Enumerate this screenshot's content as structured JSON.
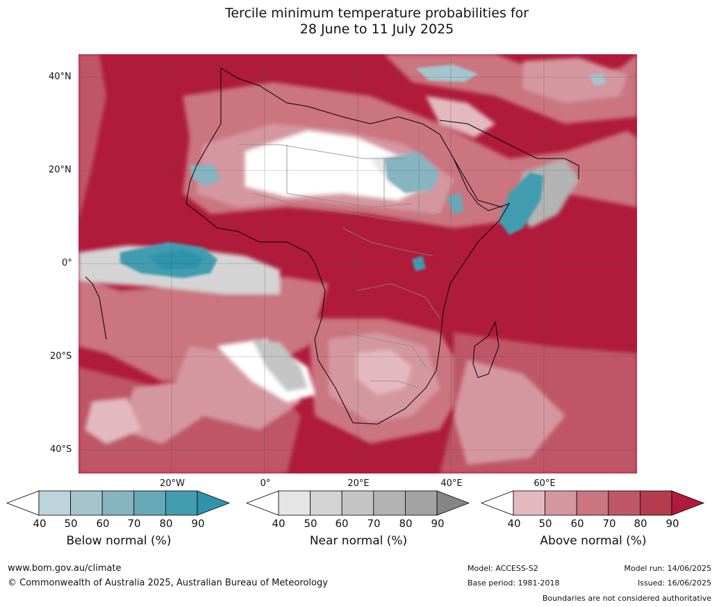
{
  "title": {
    "line1": "Tercile minimum temperature probabilities for",
    "line2": "28 June to 11 July 2025"
  },
  "map": {
    "lat_labels": [
      "40°N",
      "20°N",
      "0°",
      "20°S",
      "40°S"
    ],
    "lon_labels": [
      "20°W",
      "0°",
      "20°E",
      "40°E",
      "60°E"
    ],
    "grid": true
  },
  "colorbars": [
    {
      "label": "Below normal (%)",
      "ticks": [
        "40",
        "50",
        "60",
        "70",
        "80",
        "90"
      ],
      "colors": [
        "#ffffff",
        "#bdd4db",
        "#a5c5cd",
        "#86b4c0",
        "#67a8b6",
        "#439cb0",
        "#2f93ad"
      ]
    },
    {
      "label": "Near normal (%)",
      "ticks": [
        "40",
        "50",
        "60",
        "70",
        "80",
        "90"
      ],
      "colors": [
        "#ffffff",
        "#e5e5e5",
        "#d4d4d4",
        "#c4c4c4",
        "#b3b3b3",
        "#a3a3a3",
        "#858585"
      ]
    },
    {
      "label": "Above normal (%)",
      "ticks": [
        "40",
        "50",
        "60",
        "70",
        "80",
        "90"
      ],
      "colors": [
        "#ffffff",
        "#e3b9bf",
        "#d5979f",
        "#ca7580",
        "#bf5767",
        "#b53b4e",
        "#b01b3b"
      ]
    }
  ],
  "footer": {
    "website": "www.bom.gov.au/climate",
    "copyright": "© Commonwealth of Australia 2025, Australian Bureau of Meteorology",
    "model": "Model: ACCESS-S2",
    "base_period": "Base period: 1981-2018",
    "model_run": "Model run: 14/06/2025",
    "issued": "Issued: 16/06/2025",
    "disclaimer": "Boundaries are not considered authoritative"
  }
}
